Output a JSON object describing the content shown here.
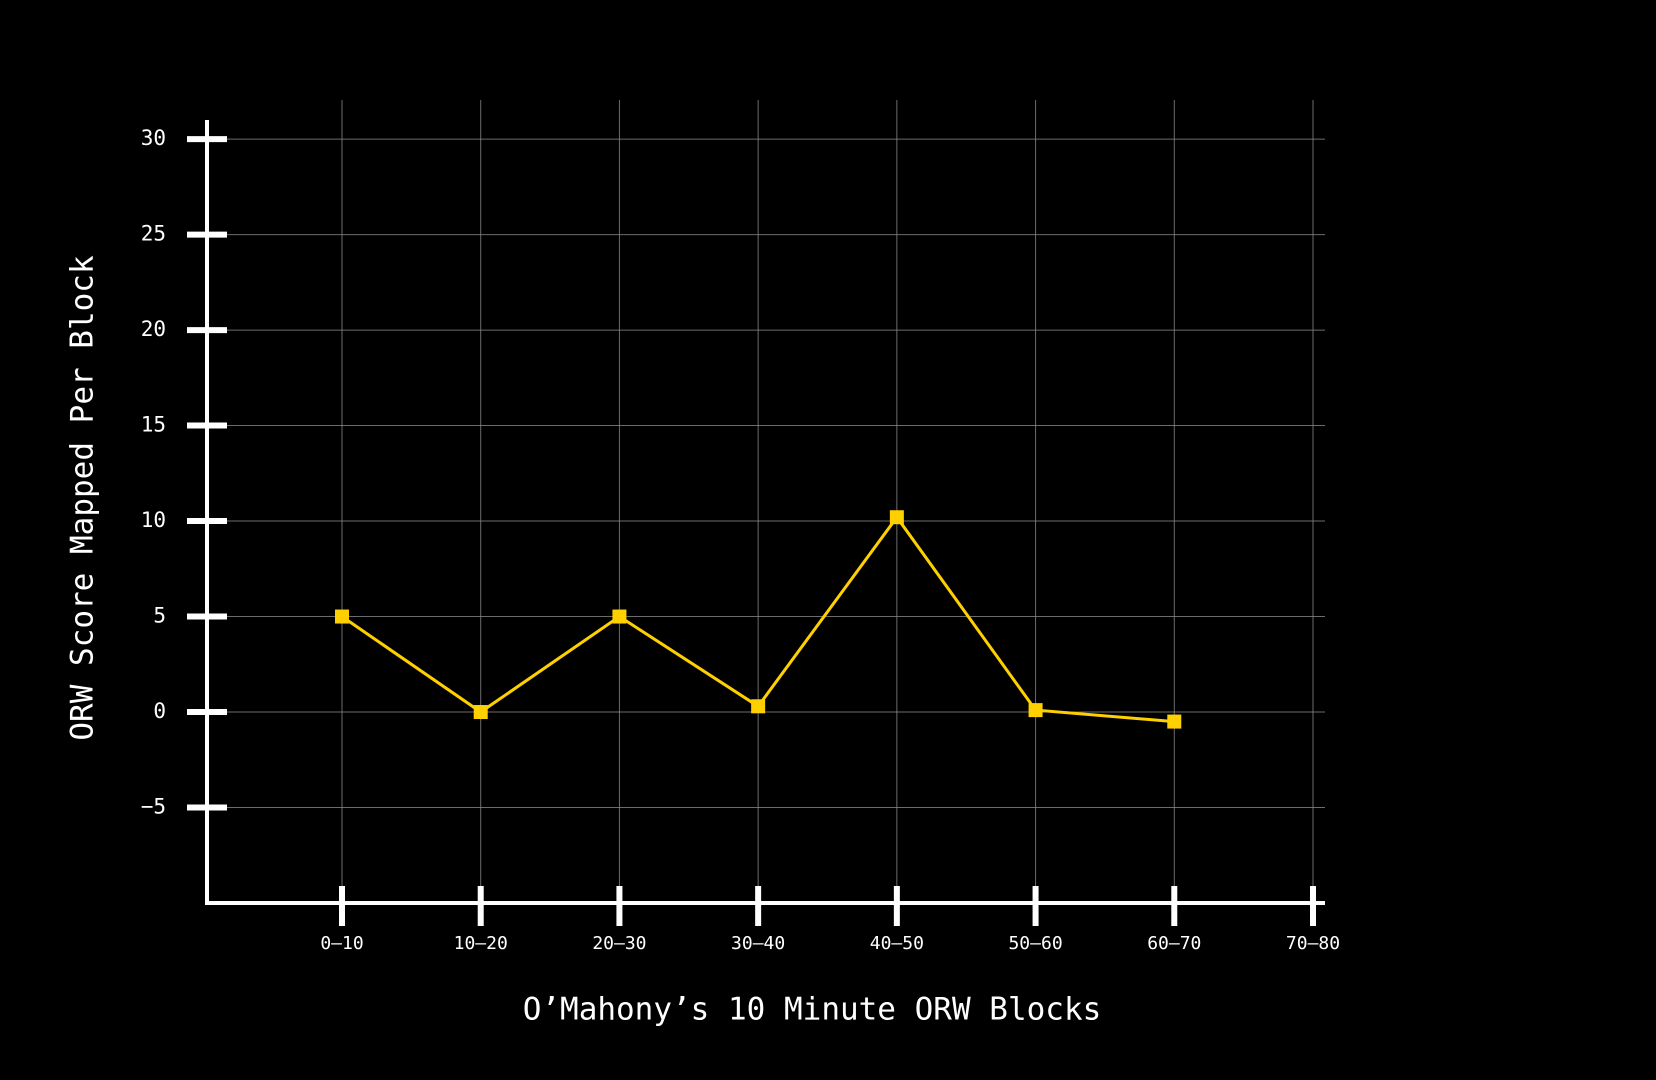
{
  "chart_data": {
    "type": "line",
    "xlabel": "O’Mahony’s 10 Minute ORW Blocks",
    "ylabel": "ORW Score Mapped Per Block",
    "categories": [
      "0–10",
      "10–20",
      "20–30",
      "30–40",
      "40–50",
      "50–60",
      "60–70",
      "70–80"
    ],
    "series": [
      {
        "name": "ORW Score",
        "color": "#ffd000",
        "values": [
          5,
          0,
          5,
          0.3,
          10.2,
          0.1,
          -0.5,
          null
        ]
      }
    ],
    "ylim": [
      -10,
      31
    ],
    "yticks": [
      {
        "value": -5,
        "label": "−5"
      },
      0,
      5,
      10,
      15,
      20,
      25,
      30
    ],
    "grid": true
  }
}
